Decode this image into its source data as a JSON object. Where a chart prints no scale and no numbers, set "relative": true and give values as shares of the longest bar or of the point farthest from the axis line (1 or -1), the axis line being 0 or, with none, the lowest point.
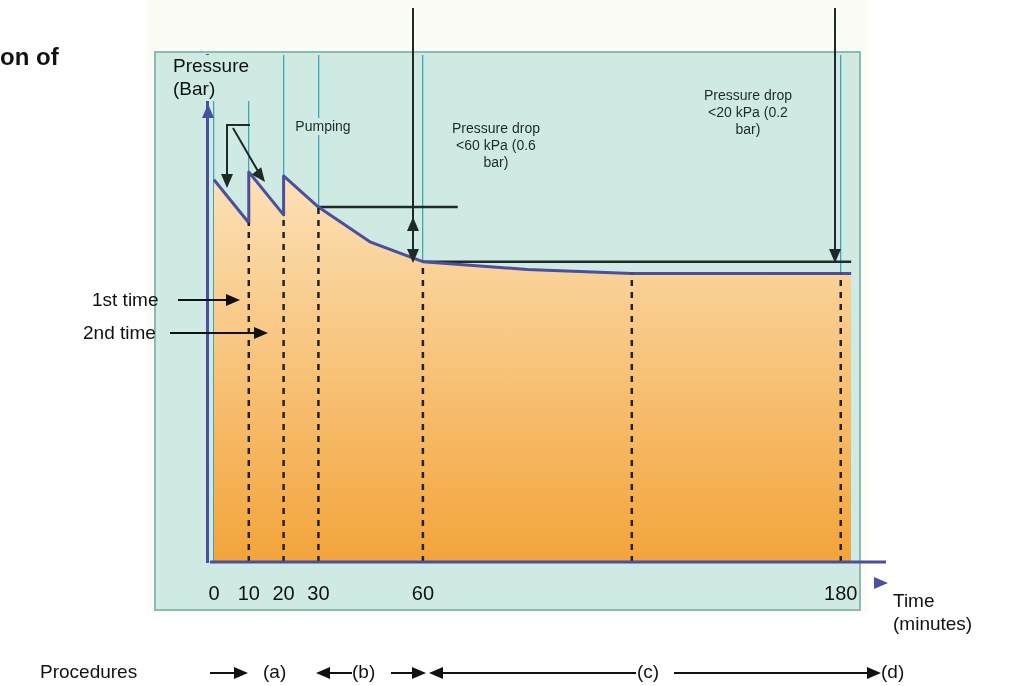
{
  "chart_data": {
    "type": "area",
    "title": "on of",
    "xlabel": "Time (minutes)",
    "ylabel": "Pressure (Bar)",
    "relative": true,
    "xlim": [
      -2,
      193
    ],
    "xticks": [
      0,
      10,
      20,
      30,
      60,
      180
    ],
    "grid": "x",
    "legend": false,
    "marker": "none",
    "line_style": "solid",
    "series": [
      {
        "color": "#f3a43a",
        "x": [
          0,
          10,
          10,
          20,
          20,
          30,
          45,
          60,
          90,
          120,
          180,
          183
        ],
        "values": [
          0.98,
          0.87,
          1,
          0.89,
          0.99,
          0.91,
          0.82,
          0.77,
          0.75,
          0.74,
          0.74,
          0.74
        ]
      },
      {
        "type": "line",
        "color": "#1f2a2a",
        "x": [
          30,
          70
        ],
        "values": [
          0.91,
          0.91
        ]
      },
      {
        "type": "line",
        "color": "#1f2a2a",
        "x": [
          60,
          183
        ],
        "values": [
          0.77,
          0.77
        ]
      }
    ],
    "ref_lines": [
      {
        "axis": "x",
        "value": 10,
        "line_style": "dashed",
        "color": "#222222"
      },
      {
        "axis": "x",
        "value": 20,
        "line_style": "dashed",
        "color": "#222222"
      },
      {
        "axis": "x",
        "value": 30,
        "line_style": "dashed",
        "color": "#222222"
      },
      {
        "axis": "x",
        "value": 60,
        "line_style": "dashed",
        "color": "#222222"
      },
      {
        "axis": "x",
        "value": 120,
        "line_style": "dashed",
        "color": "#222222"
      },
      {
        "axis": "x",
        "value": 180,
        "line_style": "dashed",
        "color": "#222222"
      }
    ],
    "annotations": [
      "Pumping",
      "Pressure drop <60 kPa (0.6 bar)",
      "Pressure drop <20 kPa (0.2 bar)",
      "1st time",
      "2nd time",
      "Procedures",
      "(a)",
      "(b)",
      "(c)",
      "(d)"
    ]
  }
}
